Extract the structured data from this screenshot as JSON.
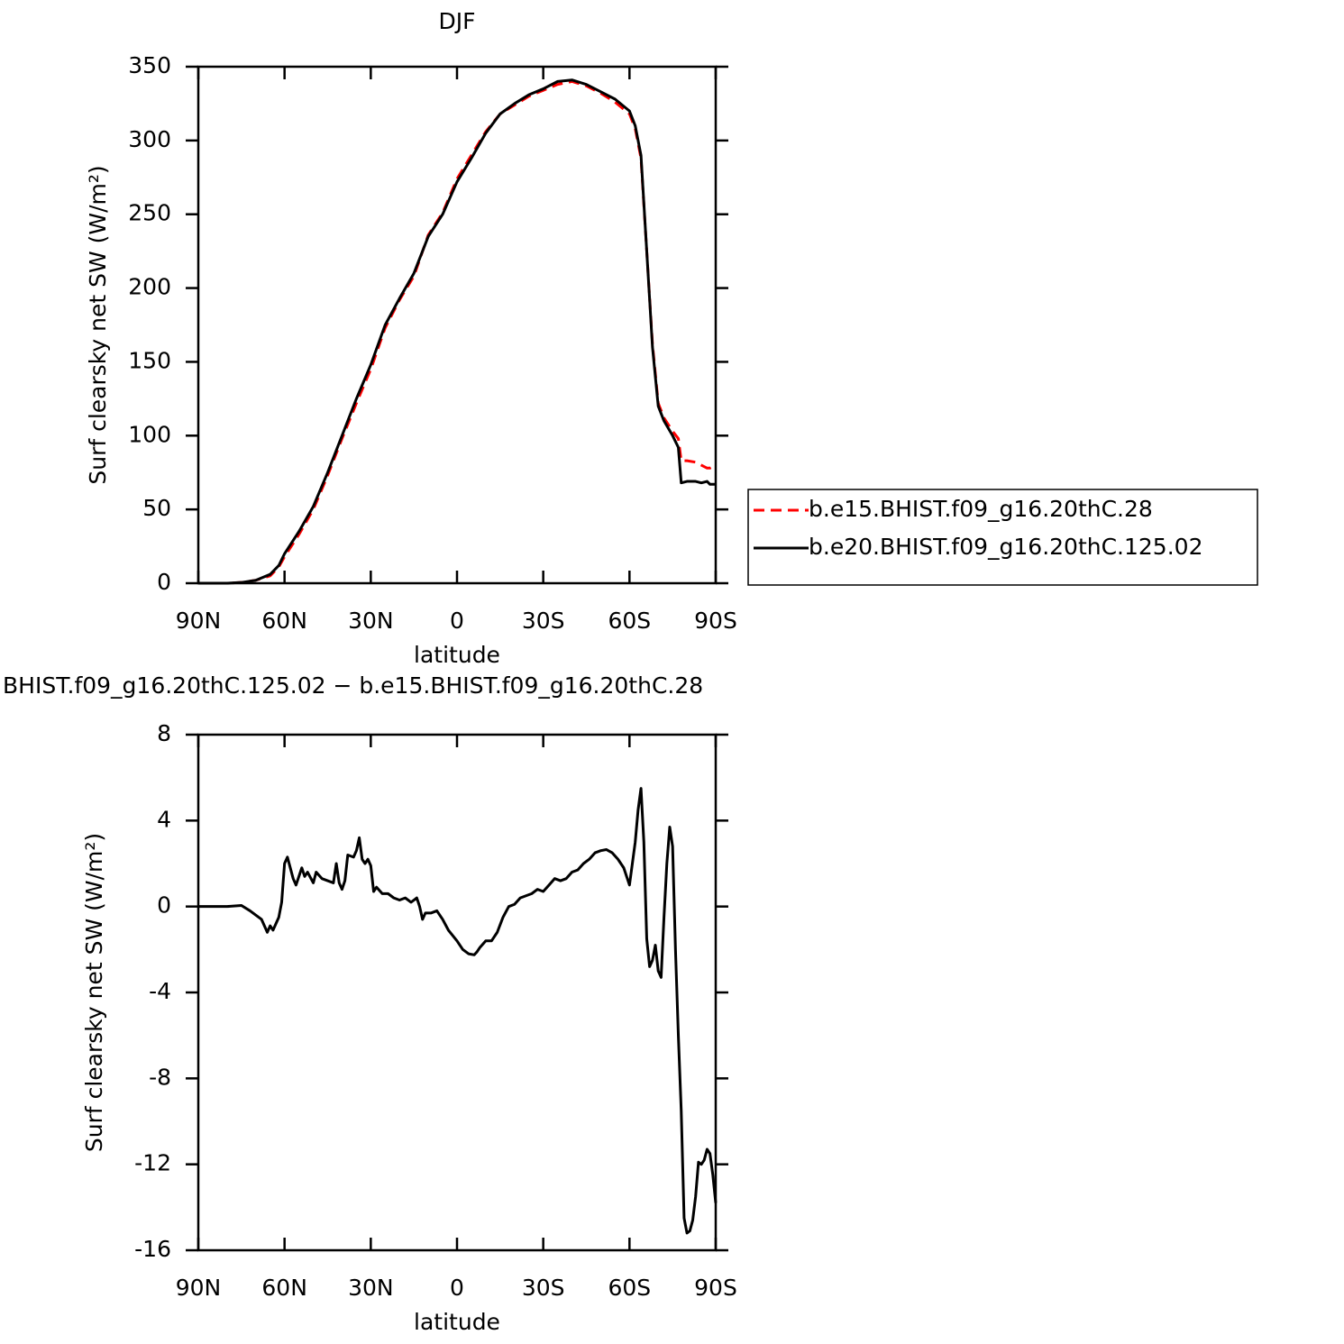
{
  "chart_data": [
    {
      "type": "line",
      "title": "DJF",
      "x_label": "latitude",
      "y_label": "Surf clearsky net SW (W/m²)",
      "xlim": [
        90,
        -90
      ],
      "xticks": [
        {
          "value": 90,
          "label": "90N"
        },
        {
          "value": 60,
          "label": "60N"
        },
        {
          "value": 30,
          "label": "30N"
        },
        0,
        {
          "value": -30,
          "label": "30S"
        },
        {
          "value": -60,
          "label": "60S"
        },
        {
          "value": -90,
          "label": "90S"
        }
      ],
      "ylim": [
        0,
        350
      ],
      "yticks": [
        0,
        50,
        100,
        150,
        200,
        250,
        300,
        350
      ],
      "legend": "right",
      "x": [
        90,
        80,
        75,
        70,
        65,
        62,
        60,
        55,
        50,
        45,
        40,
        35,
        30,
        25,
        20,
        15,
        10,
        5,
        0,
        -5,
        -10,
        -15,
        -20,
        -25,
        -30,
        -35,
        -40,
        -45,
        -50,
        -55,
        -60,
        -62,
        -64,
        -66,
        -68,
        -70,
        -72,
        -75,
        -77,
        -78,
        -80,
        -83,
        -85,
        -87,
        -88,
        -90
      ],
      "series": [
        {
          "name": "b.e15.BHIST.f09_g16.20thC.28",
          "color": "#ff0000",
          "linestyle": "dashed",
          "values": [
            0,
            0,
            0.5,
            2,
            5,
            11,
            18,
            33,
            50,
            73,
            98,
            122,
            145,
            173,
            192,
            208,
            236,
            251,
            274,
            290,
            306,
            318,
            324,
            330,
            334,
            338,
            340,
            337,
            332,
            326,
            318,
            308,
            288,
            225,
            162,
            122,
            112,
            103,
            98,
            83,
            83,
            82,
            80,
            78,
            78,
            80
          ]
        },
        {
          "name": "b.e20.BHIST.f09_g16.20thC.125.02",
          "color": "#000000",
          "linestyle": "solid",
          "values": [
            0,
            0,
            0.5,
            2,
            6,
            12,
            20,
            35,
            52,
            75,
            100,
            125,
            148,
            175,
            193,
            210,
            235,
            250,
            272,
            288,
            305,
            318,
            325,
            331,
            335,
            340,
            341,
            338,
            333,
            328,
            320,
            310,
            290,
            225,
            160,
            120,
            110,
            100,
            92,
            68,
            69,
            69,
            68,
            69,
            67,
            67
          ]
        }
      ]
    },
    {
      "type": "line",
      "title": "BHIST.f09_g16.20thC.125.02 − b.e15.BHIST.f09_g16.20thC.28",
      "x_label": "latitude",
      "y_label": "Surf clearsky net SW (W/m²)",
      "xlim": [
        90,
        -90
      ],
      "xticks": [
        {
          "value": 90,
          "label": "90N"
        },
        {
          "value": 60,
          "label": "60N"
        },
        {
          "value": 30,
          "label": "30N"
        },
        0,
        {
          "value": -30,
          "label": "30S"
        },
        {
          "value": -60,
          "label": "60S"
        },
        {
          "value": -90,
          "label": "90S"
        }
      ],
      "ylim": [
        -16,
        8
      ],
      "yticks": [
        -16,
        -12,
        -8,
        -4,
        0,
        4,
        8
      ],
      "x": [
        90,
        80,
        75,
        72,
        68,
        66,
        65,
        64,
        62,
        61,
        60,
        59,
        57,
        56,
        54,
        53,
        52,
        50,
        49,
        47,
        45,
        43,
        42,
        41,
        40,
        39,
        38,
        36,
        35,
        34,
        33,
        32,
        31,
        30,
        29,
        28,
        26,
        24,
        22,
        20,
        18,
        16,
        15,
        14,
        13,
        12,
        11,
        9,
        7,
        5,
        3,
        0,
        -2,
        -4,
        -6,
        -7,
        -8,
        -10,
        -12,
        -14,
        -16,
        -18,
        -20,
        -22,
        -24,
        -26,
        -28,
        -30,
        -32,
        -34,
        -36,
        -38,
        -40,
        -42,
        -44,
        -46,
        -48,
        -50,
        -52,
        -54,
        -56,
        -58,
        -60,
        -62,
        -63,
        -64,
        -65,
        -66,
        -67,
        -68,
        -69,
        -70,
        -71,
        -72,
        -73,
        -74,
        -75,
        -76,
        -77,
        -78,
        -79,
        -80,
        -81,
        -82,
        -83,
        -84,
        -85,
        -86,
        -87,
        -88,
        -89,
        -90
      ],
      "color": "#000000",
      "values": [
        0,
        0,
        0.05,
        -0.2,
        -0.6,
        -1.2,
        -0.9,
        -1.1,
        -0.5,
        0.2,
        2.0,
        2.3,
        1.3,
        1.0,
        1.8,
        1.4,
        1.6,
        1.1,
        1.6,
        1.3,
        1.2,
        1.1,
        2.0,
        1.1,
        0.8,
        1.2,
        2.4,
        2.3,
        2.6,
        3.2,
        2.2,
        2.0,
        2.2,
        1.9,
        0.7,
        0.9,
        0.6,
        0.6,
        0.4,
        0.3,
        0.4,
        0.2,
        0.3,
        0.4,
        0,
        -0.6,
        -0.3,
        -0.3,
        -0.2,
        -0.6,
        -1.1,
        -1.6,
        -2.0,
        -2.2,
        -2.25,
        -2.1,
        -1.9,
        -1.6,
        -1.6,
        -1.2,
        -0.5,
        0,
        0.1,
        0.4,
        0.5,
        0.6,
        0.8,
        0.7,
        1.0,
        1.3,
        1.2,
        1.3,
        1.6,
        1.7,
        2.0,
        2.2,
        2.5,
        2.6,
        2.65,
        2.5,
        2.2,
        1.8,
        1.0,
        3.0,
        4.5,
        5.5,
        3.0,
        -1.5,
        -2.8,
        -2.5,
        -1.8,
        -3.0,
        -3.3,
        -0.5,
        2.0,
        3.7,
        2.8,
        -2.0,
        -6.0,
        -9.5,
        -14.5,
        -15.2,
        -15.1,
        -14.6,
        -13.5,
        -11.9,
        -12.0,
        -11.8,
        -11.3,
        -11.5,
        -12.5,
        -13.8
      ]
    }
  ]
}
